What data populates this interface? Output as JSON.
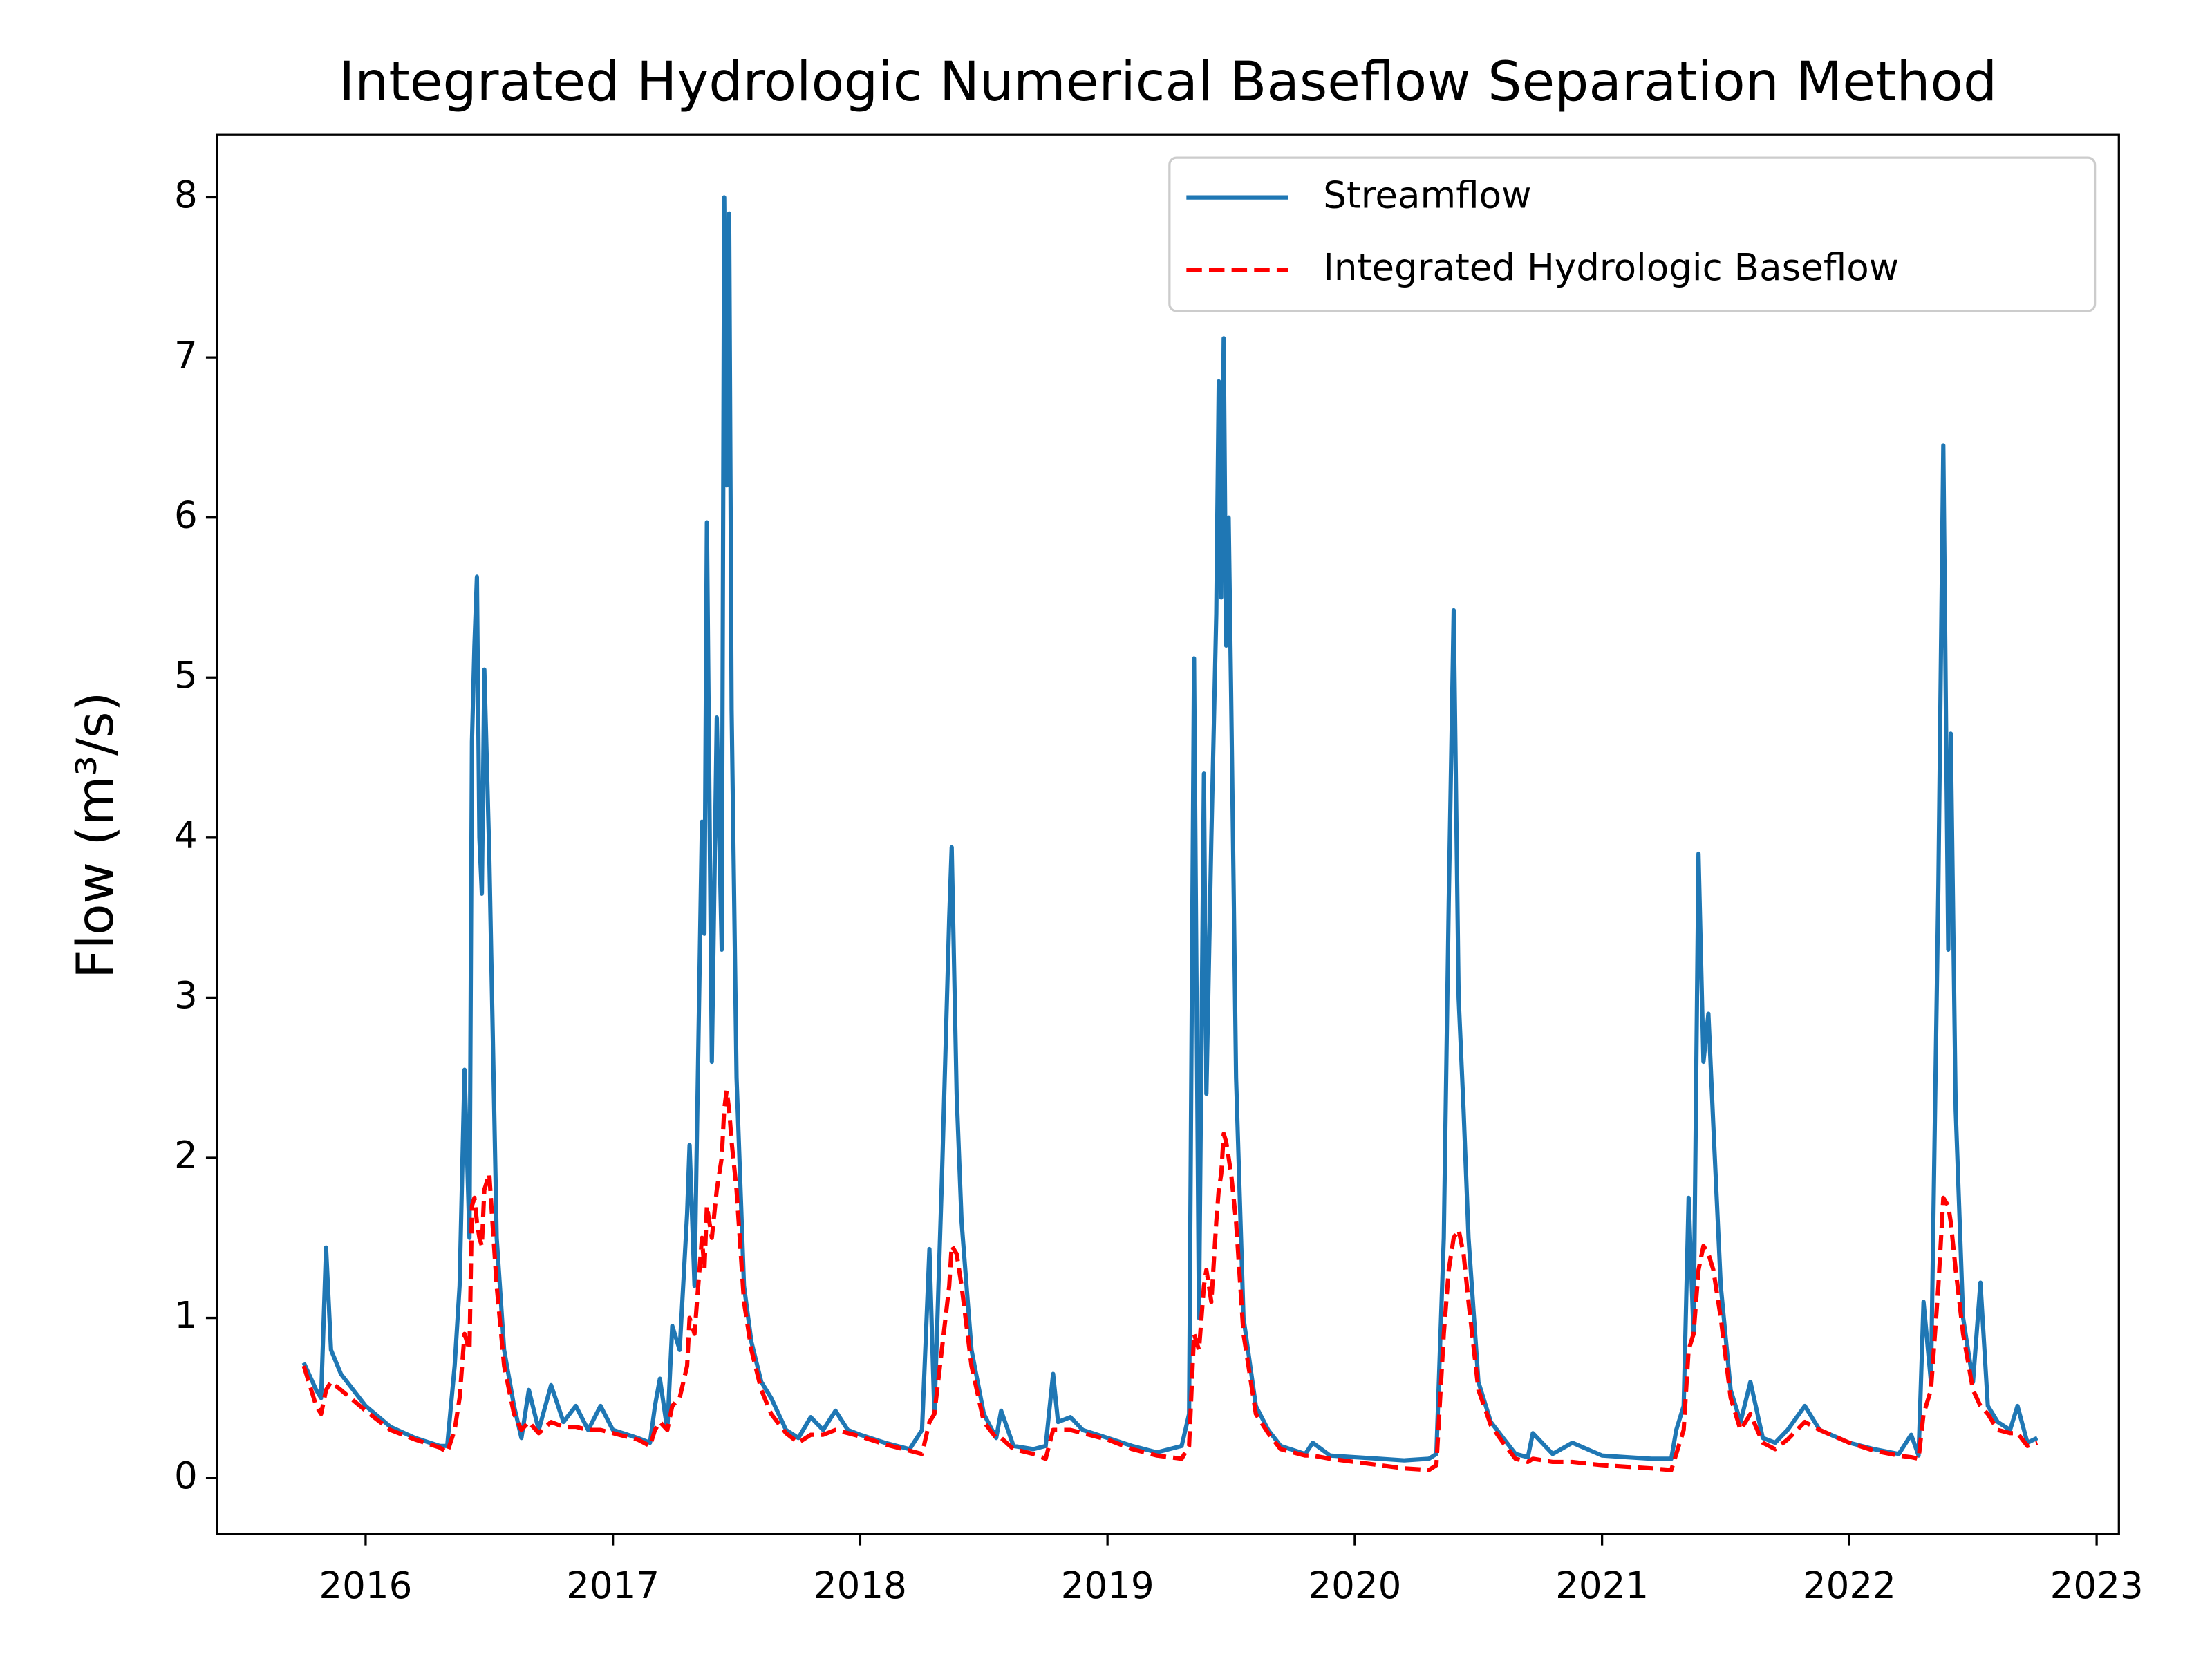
{
  "chart_data": {
    "type": "line",
    "title": "Integrated Hydrologic Numerical Baseflow Separation Method",
    "y_label": "Flow (m³/s)",
    "x": [
      2015.75,
      2015.8,
      2015.82,
      2015.84,
      2015.86,
      2015.9,
      2016.0,
      2016.1,
      2016.2,
      2016.3,
      2016.33,
      2016.36,
      2016.38,
      2016.4,
      2016.42,
      2016.43,
      2016.44,
      2016.45,
      2016.46,
      2016.47,
      2016.48,
      2016.5,
      2016.53,
      2016.56,
      2016.6,
      2016.63,
      2016.66,
      2016.7,
      2016.75,
      2016.8,
      2016.85,
      2016.9,
      2016.95,
      2017.0,
      2017.1,
      2017.15,
      2017.17,
      2017.19,
      2017.22,
      2017.24,
      2017.27,
      2017.3,
      2017.31,
      2017.33,
      2017.36,
      2017.37,
      2017.38,
      2017.4,
      2017.42,
      2017.44,
      2017.45,
      2017.46,
      2017.47,
      2017.48,
      2017.5,
      2017.53,
      2017.56,
      2017.6,
      2017.64,
      2017.7,
      2017.75,
      2017.8,
      2017.85,
      2017.9,
      2017.95,
      2018.0,
      2018.1,
      2018.2,
      2018.25,
      2018.28,
      2018.3,
      2018.33,
      2018.36,
      2018.37,
      2018.39,
      2018.41,
      2018.45,
      2018.5,
      2018.55,
      2018.57,
      2018.62,
      2018.7,
      2018.75,
      2018.78,
      2018.8,
      2018.85,
      2018.9,
      2019.0,
      2019.1,
      2019.2,
      2019.3,
      2019.33,
      2019.35,
      2019.37,
      2019.39,
      2019.4,
      2019.42,
      2019.44,
      2019.45,
      2019.46,
      2019.47,
      2019.48,
      2019.49,
      2019.5,
      2019.52,
      2019.55,
      2019.6,
      2019.65,
      2019.7,
      2019.8,
      2019.83,
      2019.9,
      2020.0,
      2020.1,
      2020.2,
      2020.3,
      2020.33,
      2020.36,
      2020.38,
      2020.4,
      2020.42,
      2020.44,
      2020.46,
      2020.5,
      2020.55,
      2020.6,
      2020.65,
      2020.7,
      2020.72,
      2020.8,
      2020.88,
      2021.0,
      2021.1,
      2021.2,
      2021.28,
      2021.3,
      2021.33,
      2021.35,
      2021.37,
      2021.39,
      2021.41,
      2021.43,
      2021.45,
      2021.48,
      2021.52,
      2021.56,
      2021.6,
      2021.65,
      2021.7,
      2021.75,
      2021.82,
      2021.88,
      2022.0,
      2022.1,
      2022.2,
      2022.25,
      2022.28,
      2022.3,
      2022.33,
      2022.36,
      2022.38,
      2022.4,
      2022.41,
      2022.43,
      2022.46,
      2022.5,
      2022.53,
      2022.56,
      2022.6,
      2022.65,
      2022.68,
      2022.72,
      2022.76
    ],
    "series": [
      {
        "name": "Streamflow",
        "color": "#1f77b4",
        "style": "solid",
        "values": [
          0.72,
          0.55,
          0.5,
          1.44,
          0.8,
          0.65,
          0.45,
          0.32,
          0.25,
          0.2,
          0.2,
          0.7,
          1.2,
          2.55,
          1.5,
          4.6,
          5.2,
          5.63,
          4.0,
          3.65,
          5.05,
          3.9,
          1.5,
          0.8,
          0.45,
          0.25,
          0.55,
          0.3,
          0.58,
          0.35,
          0.45,
          0.3,
          0.45,
          0.3,
          0.25,
          0.22,
          0.45,
          0.62,
          0.3,
          0.95,
          0.8,
          1.65,
          2.08,
          1.2,
          4.1,
          3.4,
          5.97,
          2.6,
          4.75,
          3.3,
          8.0,
          6.2,
          7.9,
          4.8,
          2.5,
          1.2,
          0.85,
          0.6,
          0.5,
          0.3,
          0.25,
          0.38,
          0.3,
          0.42,
          0.3,
          0.27,
          0.22,
          0.18,
          0.3,
          1.43,
          0.4,
          1.85,
          3.5,
          3.94,
          2.4,
          1.6,
          0.8,
          0.4,
          0.25,
          0.42,
          0.2,
          0.18,
          0.2,
          0.65,
          0.35,
          0.38,
          0.3,
          0.25,
          0.2,
          0.16,
          0.2,
          0.4,
          5.12,
          1.0,
          4.4,
          2.4,
          4.0,
          5.4,
          6.85,
          5.5,
          7.12,
          5.2,
          6.0,
          4.9,
          2.5,
          1.0,
          0.45,
          0.3,
          0.2,
          0.15,
          0.22,
          0.14,
          0.13,
          0.12,
          0.11,
          0.12,
          0.15,
          1.5,
          3.6,
          5.42,
          3.0,
          2.3,
          1.5,
          0.6,
          0.35,
          0.25,
          0.15,
          0.13,
          0.28,
          0.15,
          0.22,
          0.14,
          0.13,
          0.12,
          0.12,
          0.3,
          0.45,
          1.75,
          0.9,
          3.9,
          2.6,
          2.9,
          2.2,
          1.2,
          0.55,
          0.35,
          0.6,
          0.25,
          0.22,
          0.3,
          0.45,
          0.3,
          0.22,
          0.18,
          0.15,
          0.27,
          0.14,
          1.1,
          0.6,
          3.7,
          6.45,
          3.3,
          4.65,
          2.3,
          1.0,
          0.6,
          1.22,
          0.45,
          0.35,
          0.3,
          0.45,
          0.22,
          0.25
        ]
      },
      {
        "name": "Integrated Hydrologic Baseflow",
        "color": "#ff0000",
        "style": "dashed",
        "values": [
          0.7,
          0.45,
          0.4,
          0.55,
          0.6,
          0.55,
          0.42,
          0.3,
          0.24,
          0.19,
          0.16,
          0.3,
          0.5,
          0.9,
          0.8,
          1.7,
          1.75,
          1.6,
          1.5,
          1.45,
          1.8,
          1.9,
          1.2,
          0.7,
          0.4,
          0.3,
          0.35,
          0.28,
          0.35,
          0.32,
          0.32,
          0.3,
          0.3,
          0.28,
          0.24,
          0.2,
          0.3,
          0.35,
          0.3,
          0.45,
          0.5,
          0.7,
          1.0,
          0.9,
          1.5,
          1.3,
          1.7,
          1.5,
          1.8,
          2.0,
          2.3,
          2.42,
          2.3,
          2.1,
          1.8,
          1.1,
          0.8,
          0.55,
          0.4,
          0.28,
          0.22,
          0.27,
          0.27,
          0.3,
          0.28,
          0.26,
          0.21,
          0.17,
          0.15,
          0.35,
          0.4,
          0.8,
          1.2,
          1.45,
          1.4,
          1.2,
          0.7,
          0.35,
          0.25,
          0.25,
          0.18,
          0.15,
          0.12,
          0.3,
          0.3,
          0.3,
          0.28,
          0.24,
          0.18,
          0.14,
          0.12,
          0.2,
          0.9,
          0.8,
          1.2,
          1.3,
          1.1,
          1.6,
          1.8,
          1.9,
          2.15,
          2.1,
          2.0,
          1.9,
          1.6,
          0.9,
          0.4,
          0.28,
          0.18,
          0.14,
          0.14,
          0.12,
          0.1,
          0.08,
          0.06,
          0.05,
          0.08,
          0.9,
          1.3,
          1.5,
          1.55,
          1.4,
          1.1,
          0.55,
          0.33,
          0.22,
          0.12,
          0.1,
          0.12,
          0.1,
          0.1,
          0.08,
          0.07,
          0.06,
          0.05,
          0.15,
          0.3,
          0.8,
          0.9,
          1.3,
          1.45,
          1.4,
          1.3,
          1.0,
          0.5,
          0.3,
          0.4,
          0.22,
          0.18,
          0.24,
          0.35,
          0.3,
          0.22,
          0.17,
          0.14,
          0.13,
          0.12,
          0.4,
          0.55,
          1.2,
          1.75,
          1.7,
          1.6,
          1.3,
          0.9,
          0.55,
          0.45,
          0.4,
          0.3,
          0.28,
          0.28,
          0.2,
          0.22
        ]
      }
    ],
    "xlim": [
      2015.4,
      2023.09
    ],
    "xticks": [
      2016,
      2017,
      2018,
      2019,
      2020,
      2021,
      2022,
      2023
    ],
    "ylim": [
      -0.35,
      8.39
    ],
    "yticks": [
      0,
      1,
      2,
      3,
      4,
      5,
      6,
      7,
      8
    ],
    "legend": "upper right"
  }
}
